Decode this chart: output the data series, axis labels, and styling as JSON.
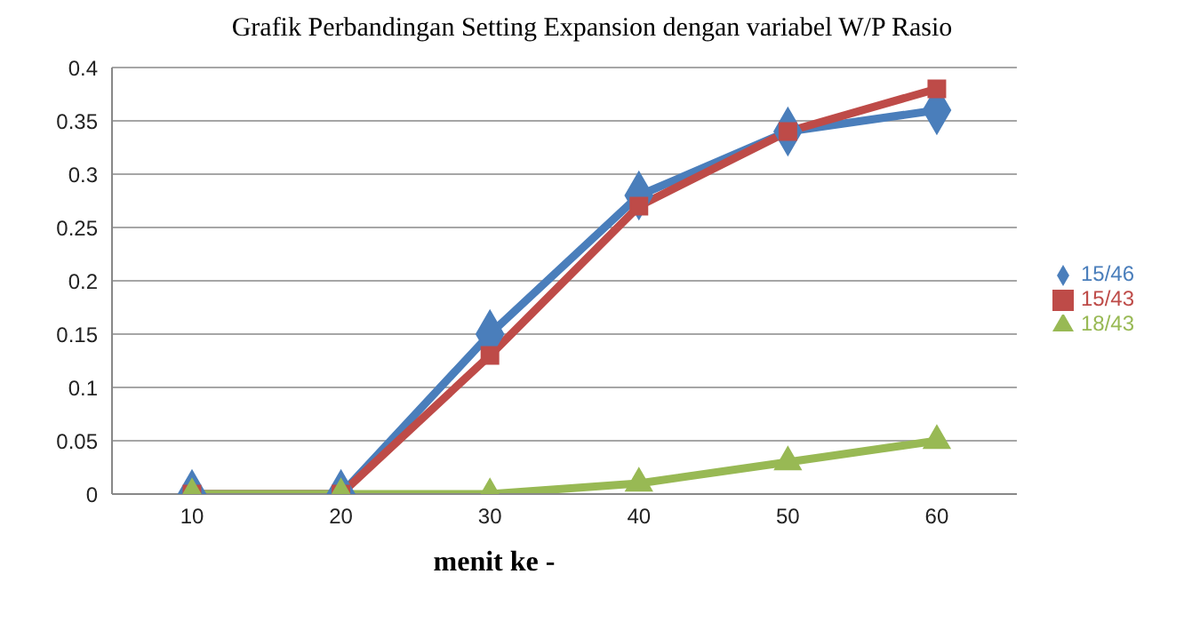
{
  "chart_data": {
    "type": "line",
    "title": "Grafik Perbandingan Setting Expansion dengan variabel W/P Rasio",
    "xlabel": "menit ke -",
    "categories": [
      "10",
      "20",
      "30",
      "40",
      "50",
      "60"
    ],
    "series": [
      {
        "name": "15/46",
        "color": "#4a7ebb",
        "marker": "diamond",
        "values": [
          0,
          0,
          0.15,
          0.28,
          0.34,
          0.36
        ]
      },
      {
        "name": "15/43",
        "color": "#be4b48",
        "marker": "square",
        "values": [
          0,
          0,
          0.13,
          0.27,
          0.34,
          0.38
        ]
      },
      {
        "name": "18/43",
        "color": "#98b954",
        "marker": "triangle",
        "values": [
          0,
          0,
          0,
          0.01,
          0.03,
          0.05
        ]
      }
    ],
    "ylim": [
      0,
      0.4
    ],
    "yticks": [
      0,
      0.05,
      0.1,
      0.15,
      0.2,
      0.25,
      0.3,
      0.35,
      0.4
    ],
    "grid": "y",
    "legend": "right"
  }
}
